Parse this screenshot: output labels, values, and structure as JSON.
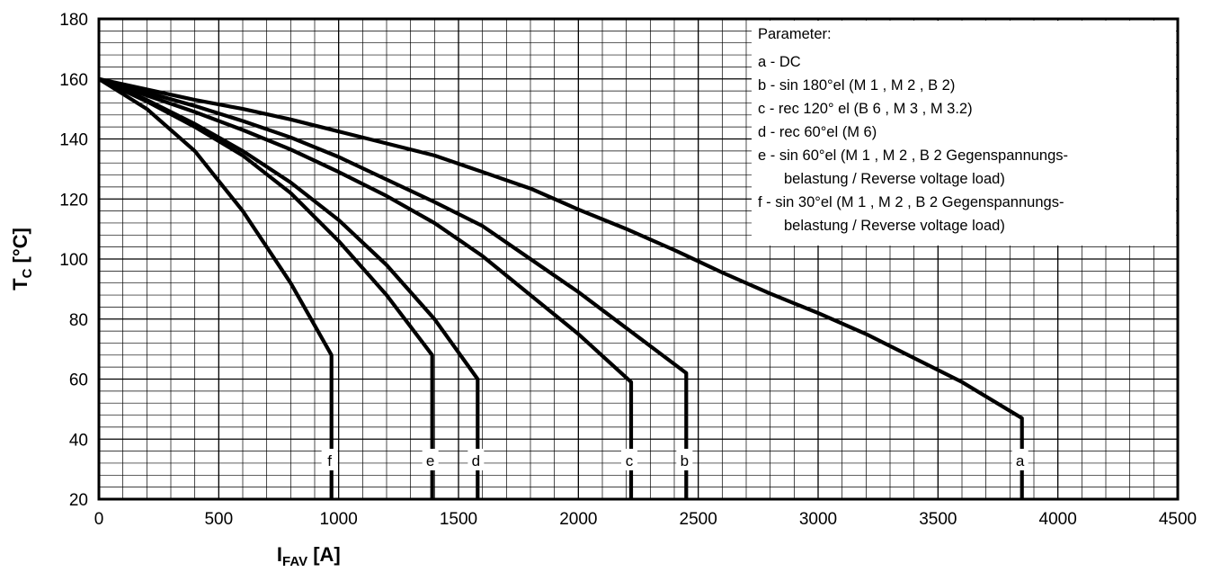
{
  "chart_data": {
    "type": "line",
    "title": "",
    "xlabel": {
      "main": "I",
      "sub": "FAV",
      "unit": " [A]"
    },
    "ylabel": {
      "main": "T",
      "sub": "C",
      "unit": " [°C]"
    },
    "xlim": [
      0,
      4500
    ],
    "ylim": [
      20,
      180
    ],
    "x_major_ticks": [
      0,
      500,
      1000,
      1500,
      2000,
      2500,
      3000,
      3500,
      4000,
      4500
    ],
    "y_major_ticks": [
      20,
      40,
      60,
      80,
      100,
      120,
      140,
      160,
      180
    ],
    "x_minor_step": 100,
    "y_minor_step": 4,
    "grid": true,
    "legend_position": "top-right",
    "legend": {
      "title": "Parameter:",
      "lines": [
        "a - DC",
        "b - sin 180°el (M 1 , M 2 , B 2)",
        "c - rec 120° el (B 6 , M 3 , M 3.2)",
        "d - rec 60°el (M 6)",
        "e - sin 60°el (M 1 , M 2 , B 2 Gegenspannungs-",
        "belastung / Reverse voltage load)",
        "f - sin 30°el (M 1 , M 2 , B 2 Gegenspannungs-",
        "belastung / Reverse voltage load)"
      ]
    },
    "series": [
      {
        "name": "a",
        "label_x": 3850,
        "x": [
          0,
          200,
          400,
          600,
          800,
          1000,
          1200,
          1400,
          1600,
          1800,
          2000,
          2200,
          2400,
          2600,
          2800,
          3000,
          3200,
          3400,
          3600,
          3850,
          3850
        ],
        "y": [
          160,
          156.5,
          153,
          150,
          146.5,
          142.5,
          138.5,
          134.5,
          129,
          123.5,
          116.5,
          110,
          103,
          95.5,
          88.5,
          82,
          75,
          67,
          59,
          47,
          20
        ]
      },
      {
        "name": "b",
        "label_x": 2450,
        "x": [
          0,
          200,
          400,
          600,
          800,
          1000,
          1200,
          1400,
          1600,
          1800,
          2000,
          2200,
          2450,
          2450
        ],
        "y": [
          160,
          155.5,
          151,
          146,
          140.5,
          134,
          126.5,
          119,
          111,
          100,
          89,
          77,
          62,
          20
        ]
      },
      {
        "name": "c",
        "label_x": 2220,
        "x": [
          0,
          200,
          400,
          600,
          800,
          1000,
          1200,
          1400,
          1600,
          1800,
          2000,
          2220,
          2220
        ],
        "y": [
          160,
          154.5,
          149,
          143,
          136.5,
          129,
          121,
          112,
          101,
          88,
          75,
          59,
          20
        ]
      },
      {
        "name": "d",
        "label_x": 1580,
        "x": [
          0,
          200,
          400,
          600,
          800,
          1000,
          1200,
          1400,
          1580,
          1580
        ],
        "y": [
          160,
          153,
          145,
          136,
          125.5,
          113,
          98,
          80,
          60,
          20
        ]
      },
      {
        "name": "e",
        "label_x": 1390,
        "x": [
          0,
          200,
          400,
          600,
          800,
          1000,
          1200,
          1390,
          1390
        ],
        "y": [
          160,
          152.5,
          144,
          134.5,
          122,
          106,
          88,
          68,
          20
        ]
      },
      {
        "name": "f",
        "label_x": 970,
        "x": [
          0,
          200,
          400,
          600,
          800,
          970,
          970
        ],
        "y": [
          160,
          150,
          136,
          116,
          92,
          68,
          20
        ]
      }
    ]
  }
}
